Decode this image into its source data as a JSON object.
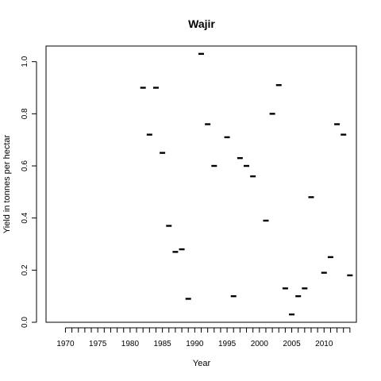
{
  "chart_data": {
    "type": "scatter",
    "title": "Wajir",
    "xlabel": "Year",
    "ylabel": "Yield in tonnes per hectar",
    "xlim": [
      1967,
      2015
    ],
    "ylim": [
      0,
      1.06
    ],
    "grid": false,
    "x_ticks_major": [
      1970,
      1975,
      1980,
      1985,
      1990,
      1995,
      2000,
      2005,
      2010
    ],
    "x_ticks_minor_from": 1970,
    "x_ticks_minor_to": 2014,
    "y_ticks": [
      0.0,
      0.2,
      0.4,
      0.6,
      0.8,
      1.0
    ],
    "y_tick_labels": [
      "0.0",
      "0.2",
      "0.4",
      "0.6",
      "0.8",
      "1.0"
    ],
    "marker_color": "#000000",
    "points": [
      {
        "x": 1982,
        "y": 0.9
      },
      {
        "x": 1983,
        "y": 0.72
      },
      {
        "x": 1984,
        "y": 0.9
      },
      {
        "x": 1985,
        "y": 0.65
      },
      {
        "x": 1986,
        "y": 0.37
      },
      {
        "x": 1987,
        "y": 0.27
      },
      {
        "x": 1988,
        "y": 0.28
      },
      {
        "x": 1989,
        "y": 0.09
      },
      {
        "x": 1991,
        "y": 1.03
      },
      {
        "x": 1992,
        "y": 0.76
      },
      {
        "x": 1993,
        "y": 0.6
      },
      {
        "x": 1995,
        "y": 0.71
      },
      {
        "x": 1996,
        "y": 0.1
      },
      {
        "x": 1997,
        "y": 0.63
      },
      {
        "x": 1998,
        "y": 0.6
      },
      {
        "x": 1999,
        "y": 0.56
      },
      {
        "x": 2001,
        "y": 0.39
      },
      {
        "x": 2002,
        "y": 0.8
      },
      {
        "x": 2003,
        "y": 0.91
      },
      {
        "x": 2004,
        "y": 0.13
      },
      {
        "x": 2005,
        "y": 0.03
      },
      {
        "x": 2006,
        "y": 0.1
      },
      {
        "x": 2007,
        "y": 0.13
      },
      {
        "x": 2008,
        "y": 0.48
      },
      {
        "x": 2010,
        "y": 0.19
      },
      {
        "x": 2011,
        "y": 0.25
      },
      {
        "x": 2012,
        "y": 0.76
      },
      {
        "x": 2013,
        "y": 0.72
      },
      {
        "x": 2014,
        "y": 0.18
      }
    ]
  }
}
